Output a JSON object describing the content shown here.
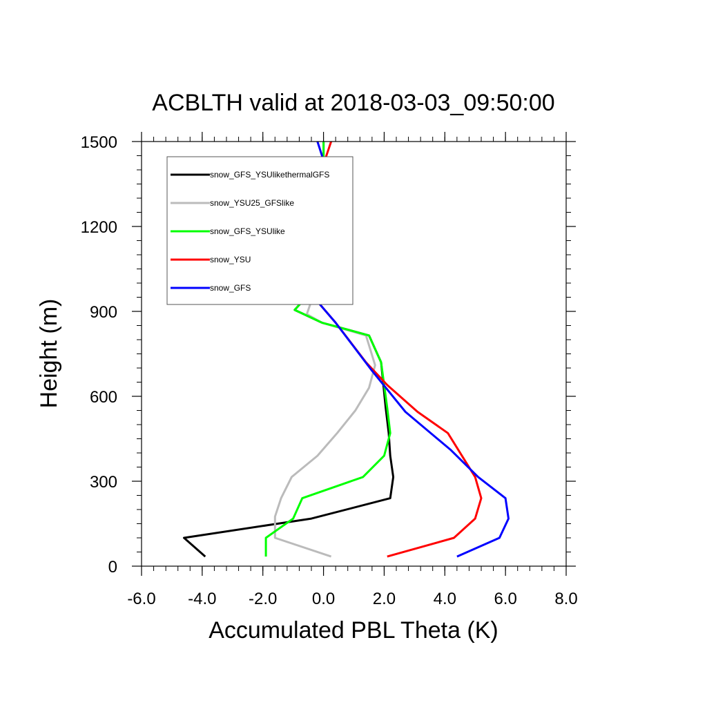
{
  "chart_data": {
    "type": "line",
    "title": "ACBLTH valid at 2018-03-03_09:50:00",
    "xlabel": "Accumulated PBL Theta (K)",
    "ylabel": "Height (m)",
    "xlim": [
      -6.0,
      8.0
    ],
    "ylim": [
      0,
      1500
    ],
    "x_ticks": [
      -6.0,
      -4.0,
      -2.0,
      0.0,
      2.0,
      4.0,
      6.0,
      8.0
    ],
    "x_tick_labels": [
      "-6.0",
      "-4.0",
      "-2.0",
      "0.0",
      "2.0",
      "4.0",
      "6.0",
      "8.0"
    ],
    "y_ticks": [
      0,
      300,
      600,
      900,
      1200,
      1500
    ],
    "y_tick_labels": [
      "0",
      "300",
      "600",
      "900",
      "1200",
      "1500"
    ],
    "grid": false,
    "legend_position": "top-left",
    "series": [
      {
        "name": "snow_GFS_YSUlikethermalGFS",
        "color": "#000000",
        "points": [
          [
            -3.9,
            34
          ],
          [
            -4.6,
            100
          ],
          [
            -0.4,
            168
          ],
          [
            2.2,
            240
          ],
          [
            2.3,
            315
          ],
          [
            2.2,
            390
          ],
          [
            2.15,
            470
          ],
          [
            2.05,
            560
          ],
          [
            1.9,
            720
          ],
          [
            1.5,
            815
          ],
          [
            -0.05,
            860
          ],
          [
            -0.95,
            905
          ],
          [
            -0.15,
            1000
          ],
          [
            0.0,
            1110
          ],
          [
            0.0,
            1300
          ],
          [
            0.0,
            1500
          ]
        ]
      },
      {
        "name": "snow_YSU25_GFSlike",
        "color": "#bbbbbb",
        "points": [
          [
            0.25,
            34
          ],
          [
            -1.6,
            100
          ],
          [
            -1.6,
            175
          ],
          [
            -1.4,
            240
          ],
          [
            -1.05,
            315
          ],
          [
            -0.2,
            390
          ],
          [
            0.45,
            470
          ],
          [
            1.05,
            550
          ],
          [
            1.5,
            630
          ],
          [
            1.7,
            710
          ],
          [
            1.4,
            815
          ],
          [
            -0.05,
            860
          ],
          [
            -0.55,
            890
          ],
          [
            -0.2,
            1000
          ],
          [
            0.0,
            1110
          ],
          [
            0.0,
            1500
          ]
        ]
      },
      {
        "name": "snow_GFS_YSUlike",
        "color": "#00ff00",
        "points": [
          [
            -1.9,
            34
          ],
          [
            -1.9,
            100
          ],
          [
            -1.0,
            168
          ],
          [
            -0.7,
            240
          ],
          [
            1.3,
            315
          ],
          [
            2.0,
            390
          ],
          [
            2.2,
            470
          ],
          [
            2.1,
            560
          ],
          [
            1.9,
            720
          ],
          [
            1.5,
            815
          ],
          [
            -0.05,
            860
          ],
          [
            -0.95,
            905
          ],
          [
            -0.15,
            1000
          ],
          [
            0.0,
            1110
          ],
          [
            0.0,
            1300
          ],
          [
            0.0,
            1500
          ]
        ]
      },
      {
        "name": "snow_YSU",
        "color": "#ff0000",
        "points": [
          [
            2.1,
            34
          ],
          [
            4.3,
            100
          ],
          [
            5.0,
            168
          ],
          [
            5.2,
            240
          ],
          [
            5.0,
            315
          ],
          [
            4.1,
            470
          ],
          [
            3.1,
            545
          ],
          [
            2.1,
            640
          ],
          [
            1.4,
            720
          ],
          [
            0.4,
            860
          ],
          [
            -0.6,
            985
          ],
          [
            -0.8,
            1090
          ],
          [
            -0.75,
            1190
          ],
          [
            -0.25,
            1320
          ],
          [
            0.0,
            1420
          ],
          [
            0.25,
            1500
          ]
        ]
      },
      {
        "name": "snow_GFS",
        "color": "#0000ff",
        "points": [
          [
            4.4,
            34
          ],
          [
            5.8,
            100
          ],
          [
            6.1,
            168
          ],
          [
            6.0,
            240
          ],
          [
            5.1,
            315
          ],
          [
            4.2,
            410
          ],
          [
            2.7,
            545
          ],
          [
            1.6,
            690
          ],
          [
            0.4,
            860
          ],
          [
            -0.6,
            985
          ],
          [
            -0.8,
            1090
          ],
          [
            -1.15,
            1200
          ],
          [
            -1.35,
            1300
          ],
          [
            -0.05,
            1410
          ],
          [
            -0.05,
            1450
          ],
          [
            -0.2,
            1500
          ]
        ]
      }
    ]
  }
}
